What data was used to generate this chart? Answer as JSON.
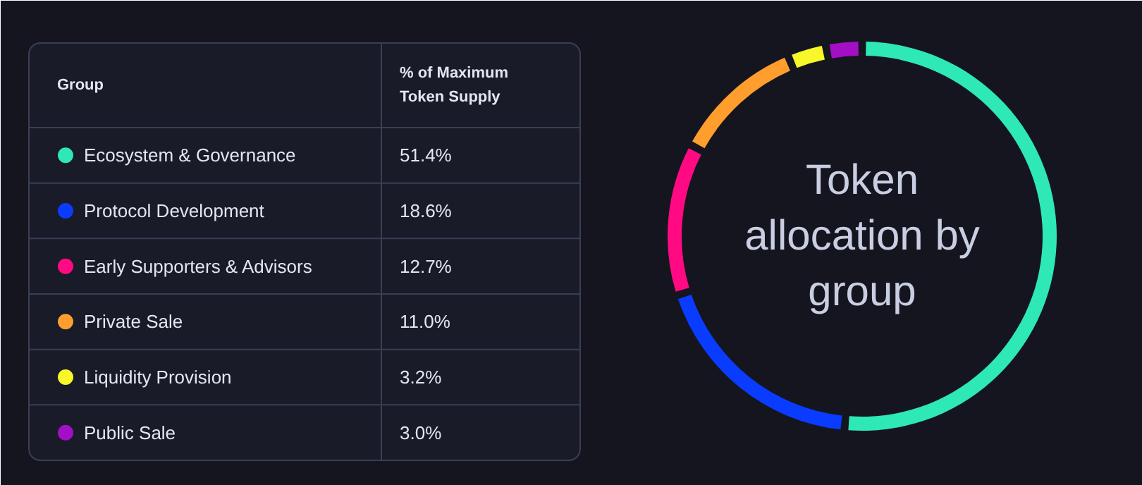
{
  "chart_data": {
    "type": "donut",
    "title": "Token allocation by group",
    "legend": "left",
    "annotations": [
      "Group",
      "% of Maximum Token Supply"
    ],
    "categories": [
      "Ecosystem & Governance",
      "Protocol Development",
      "Early Supporters & Advisors",
      "Private Sale",
      "Liquidity Provision",
      "Public Sale"
    ],
    "values": [
      51.4,
      18.6,
      12.7,
      11.0,
      3.2,
      3.0
    ],
    "value_labels": [
      "51.4%",
      "18.6%",
      "12.7%",
      "11.0%",
      "3.2%",
      "3.0%"
    ],
    "colors": [
      "#2ee8b6",
      "#0a3cff",
      "#ff0a82",
      "#ff9e2c",
      "#f7f72a",
      "#a30fc4"
    ]
  }
}
